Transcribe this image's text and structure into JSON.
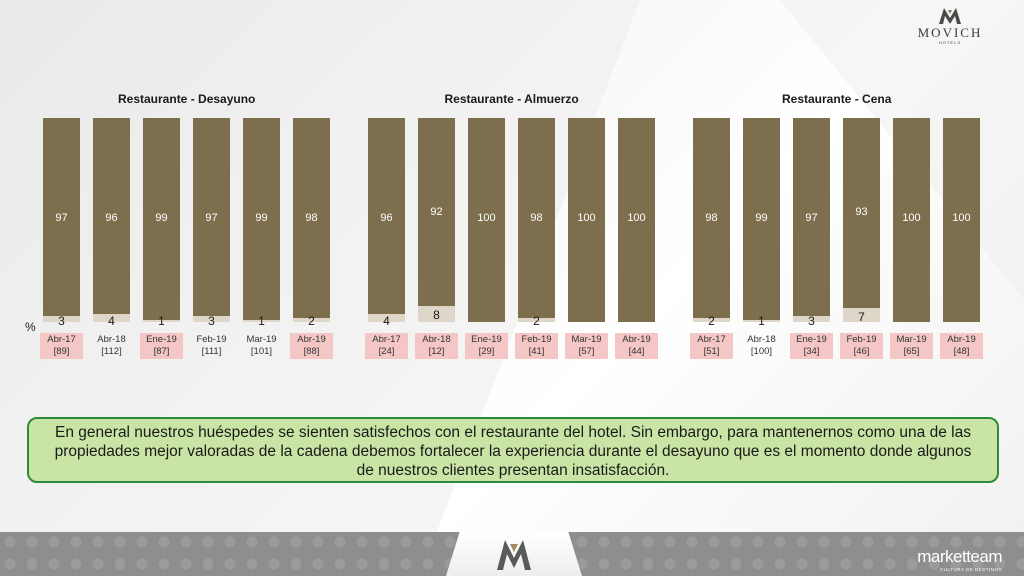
{
  "logo": {
    "brand": "MOVICH",
    "sub": "HOTELS"
  },
  "footer_brand": {
    "name": "marketteam",
    "tag": "CULTURA DE DESTINOS"
  },
  "percent_label": "%",
  "message": "En general nuestros huéspedes se sienten satisfechos con el restaurante del hotel. Sin embargo, para mantenernos como una de las propiedades mejor valoradas de la cadena debemos fortalecer la experiencia durante el desayuno que es el momento donde algunos de nuestros clientes presentan insatisfacción.",
  "colors": {
    "satisfied": "#7d6e4e",
    "unsatisfied": "#ded6c8",
    "highlight": "#f4c6c6",
    "message_bg": "#c9e4a4",
    "message_border": "#2e8a3a"
  },
  "chart_data": [
    {
      "type": "bar",
      "stacked": true,
      "title": "Restaurante - Desayuno",
      "categories": [
        "Abr-17",
        "Abr-18",
        "Ene-19",
        "Feb-19",
        "Mar-19",
        "Abr-19"
      ],
      "base": [
        "[89]",
        "[112]",
        "[87]",
        "[111]",
        "[101]",
        "[88]"
      ],
      "highlighted": [
        true,
        false,
        true,
        false,
        false,
        true
      ],
      "ylim": [
        0,
        100
      ],
      "series": [
        {
          "name": "",
          "values": [
            97,
            96,
            99,
            97,
            99,
            98
          ]
        },
        {
          "name": "",
          "values": [
            3,
            4,
            1,
            3,
            1,
            2
          ]
        }
      ]
    },
    {
      "type": "bar",
      "stacked": true,
      "title": "Restaurante - Almuerzo",
      "categories": [
        "Abr-17",
        "Abr-18",
        "Ene-19",
        "Feb-19",
        "Mar-19",
        "Abr-19"
      ],
      "base": [
        "[24]",
        "[12]",
        "[29]",
        "[41]",
        "[57]",
        "[44]"
      ],
      "highlighted": [
        true,
        true,
        true,
        true,
        true,
        true
      ],
      "ylim": [
        0,
        100
      ],
      "series": [
        {
          "name": "",
          "values": [
            96,
            92,
            100,
            98,
            100,
            100
          ]
        },
        {
          "name": "",
          "values": [
            4,
            8,
            null,
            2,
            null,
            null
          ]
        }
      ]
    },
    {
      "type": "bar",
      "stacked": true,
      "title": "Restaurante - Cena",
      "categories": [
        "Abr-17",
        "Abr-18",
        "Ene-19",
        "Feb-19",
        "Mar-19",
        "Abr-19"
      ],
      "base": [
        "[51]",
        "[100]",
        "[34]",
        "[46]",
        "[65]",
        "[48]"
      ],
      "highlighted": [
        true,
        false,
        true,
        true,
        true,
        true
      ],
      "ylim": [
        0,
        100
      ],
      "series": [
        {
          "name": "",
          "values": [
            98,
            99,
            97,
            93,
            100,
            100
          ]
        },
        {
          "name": "",
          "values": [
            2,
            1,
            3,
            7,
            null,
            null
          ]
        }
      ]
    }
  ]
}
